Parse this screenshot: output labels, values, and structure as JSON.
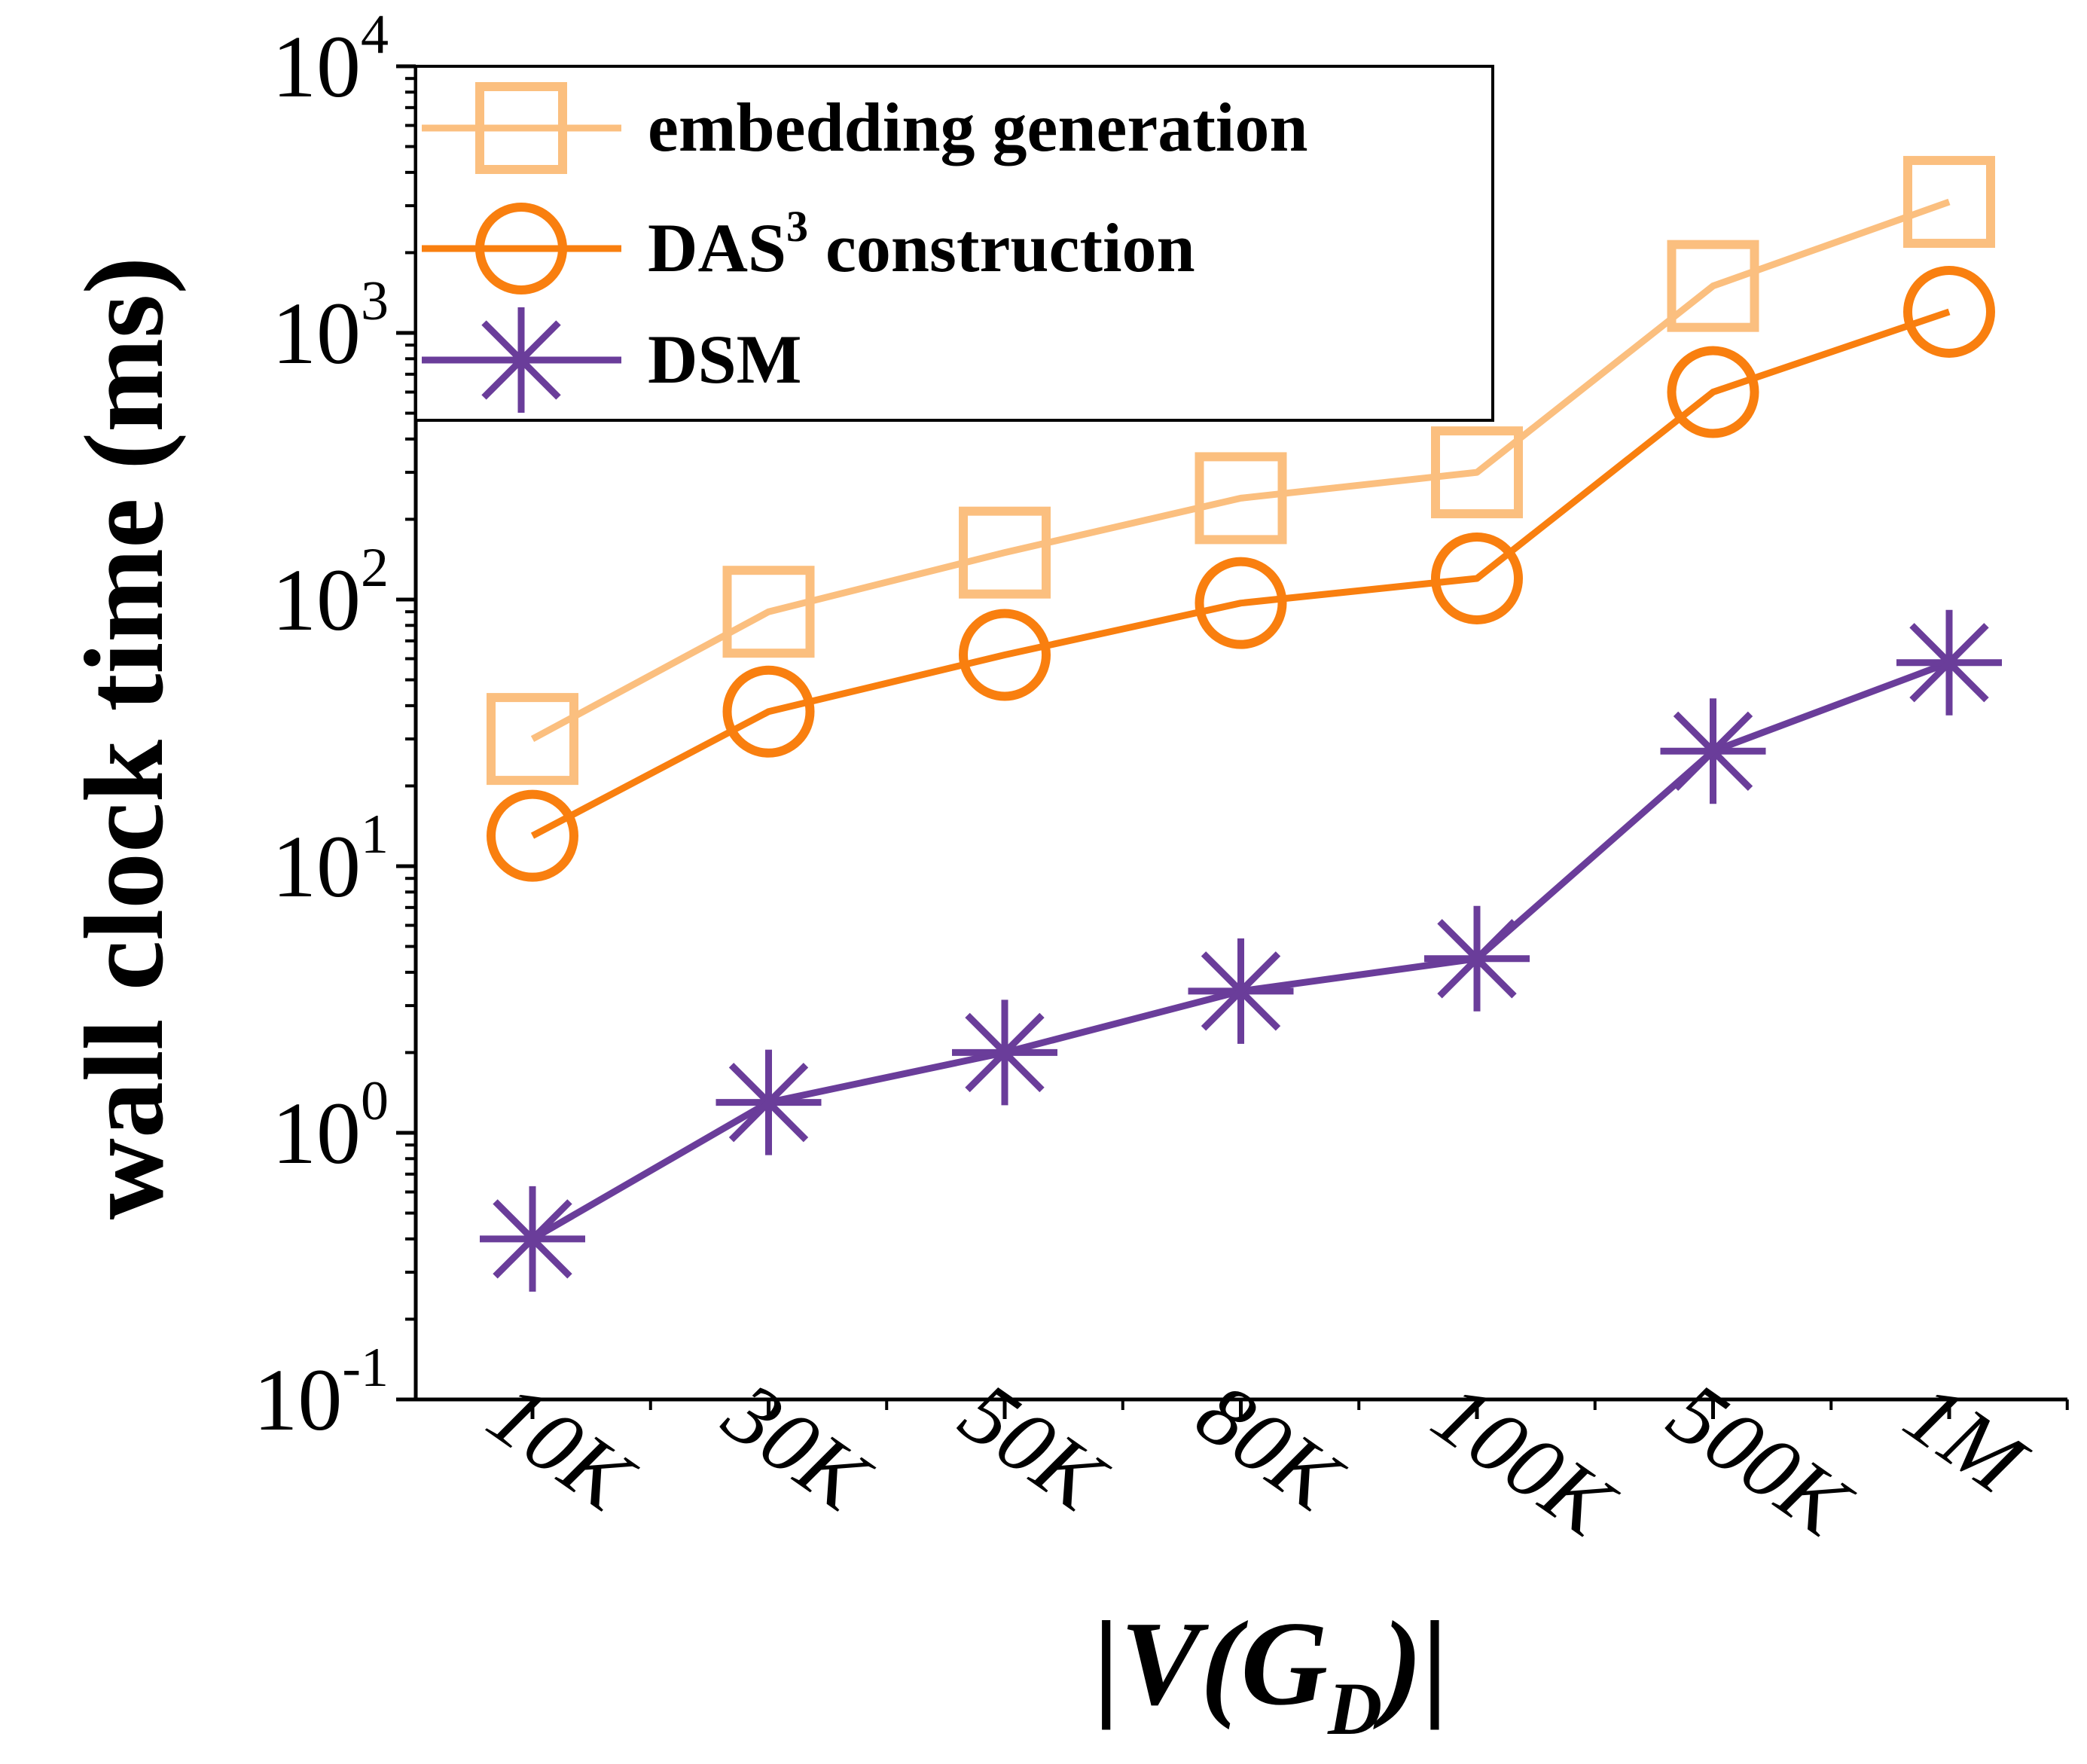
{
  "chart_data": {
    "type": "line",
    "title": "",
    "ylabel": "wall clock time (ms)",
    "xlabel": {
      "prefix": "|V(G",
      "subscript": "D",
      "suffix": ")|"
    },
    "yscale": "log",
    "ylim": [
      0.1,
      10000
    ],
    "y_ticks": [
      {
        "base": "10",
        "exp": "4"
      },
      {
        "base": "10",
        "exp": "3"
      },
      {
        "base": "10",
        "exp": "2"
      },
      {
        "base": "10",
        "exp": "1"
      },
      {
        "base": "10",
        "exp": "0"
      },
      {
        "base": "10",
        "exp": "-1"
      }
    ],
    "categories": [
      "10K",
      "30K",
      "50K",
      "80K",
      "100K",
      "500K",
      "1M"
    ],
    "legend_position": "top-left",
    "series": [
      {
        "name": "embedding generation",
        "marker": "square",
        "color": "#fbbf7f",
        "values": [
          30,
          90,
          150,
          240,
          300,
          1500,
          3100
        ]
      },
      {
        "name": "DAS",
        "name_sup": "3",
        "name_rest": " construction",
        "marker": "circle",
        "color": "#f97f0f",
        "values": [
          13,
          38,
          62,
          97,
          120,
          600,
          1200
        ]
      },
      {
        "name": "DSM",
        "marker": "asterisk",
        "color": "#6a3d9a",
        "values": [
          0.4,
          1.3,
          2.0,
          3.4,
          4.5,
          27,
          58
        ]
      }
    ]
  }
}
